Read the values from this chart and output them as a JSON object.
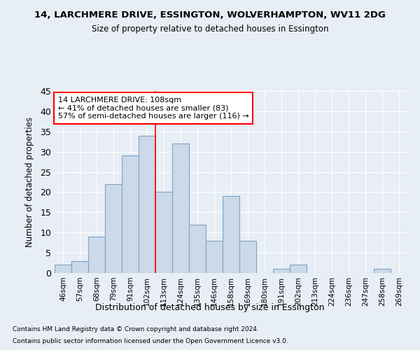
{
  "title": "14, LARCHMERE DRIVE, ESSINGTON, WOLVERHAMPTON, WV11 2DG",
  "subtitle": "Size of property relative to detached houses in Essington",
  "xlabel": "Distribution of detached houses by size in Essington",
  "ylabel": "Number of detached properties",
  "bar_color": "#ccd9e8",
  "bar_edge_color": "#7ba3c8",
  "categories": [
    "46sqm",
    "57sqm",
    "68sqm",
    "79sqm",
    "91sqm",
    "102sqm",
    "113sqm",
    "124sqm",
    "135sqm",
    "146sqm",
    "158sqm",
    "169sqm",
    "180sqm",
    "191sqm",
    "202sqm",
    "213sqm",
    "224sqm",
    "236sqm",
    "247sqm",
    "258sqm",
    "269sqm"
  ],
  "values": [
    2,
    3,
    9,
    22,
    29,
    34,
    20,
    32,
    12,
    8,
    19,
    8,
    0,
    1,
    2,
    0,
    0,
    0,
    0,
    1,
    0
  ],
  "ylim": [
    0,
    45
  ],
  "yticks": [
    0,
    5,
    10,
    15,
    20,
    25,
    30,
    35,
    40,
    45
  ],
  "property_bin_index": 5,
  "annotation_title": "14 LARCHMERE DRIVE: 108sqm",
  "annotation_line1": "← 41% of detached houses are smaller (83)",
  "annotation_line2": "57% of semi-detached houses are larger (116) →",
  "annotation_box_color": "white",
  "annotation_box_edge_color": "red",
  "vline_color": "red",
  "footer1": "Contains HM Land Registry data © Crown copyright and database right 2024.",
  "footer2": "Contains public sector information licensed under the Open Government Licence v3.0.",
  "background_color": "#e8eef5",
  "grid_color": "white"
}
